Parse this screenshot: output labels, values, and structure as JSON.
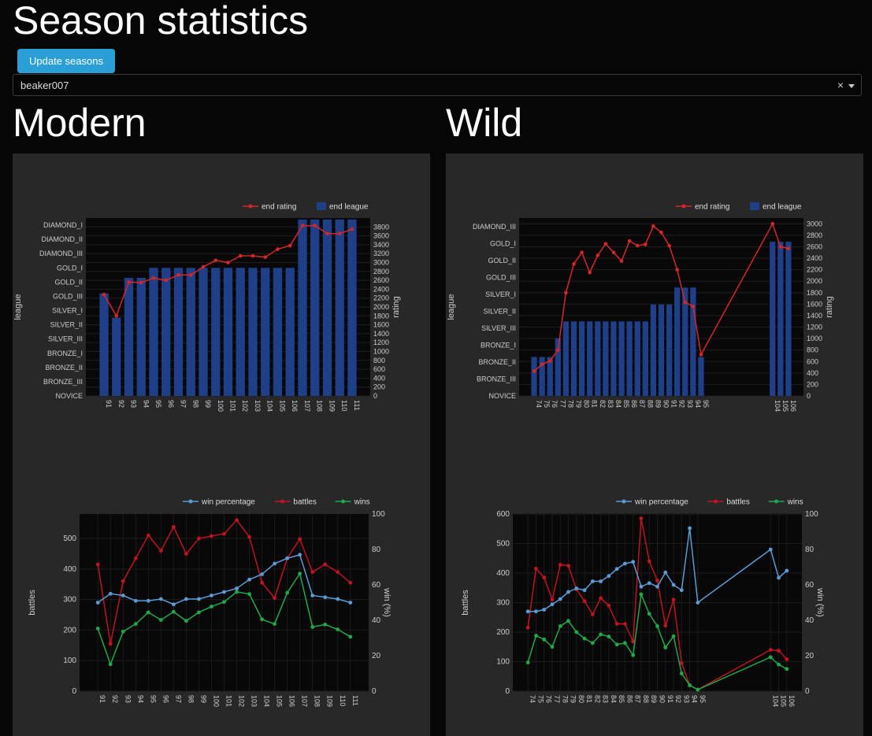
{
  "page": {
    "title": "Season statistics",
    "update_button": "Update seasons",
    "selected_player": "beaker007",
    "clear_symbol": "×"
  },
  "sections": {
    "modern": "Modern",
    "wild": "Wild"
  },
  "colors": {
    "end_rating": "#d62728",
    "end_league": "#1f3f88",
    "win_percentage": "#5b9bd5",
    "battles": "#c0141e",
    "wins": "#1faa4a",
    "panel_bg": "#282828",
    "plot_bg": "#080808"
  },
  "chart_data": [
    {
      "id": "modern-rating",
      "type": "bar+line",
      "legend": [
        "end rating",
        "end league"
      ],
      "legend_position": "top-right",
      "ylabel": "league",
      "y2label": "rating",
      "league_levels": [
        "NOVICE",
        "BRONZE_III",
        "BRONZE_II",
        "BRONZE_I",
        "SILVER_III",
        "SILVER_II",
        "SILVER_I",
        "GOLD_III",
        "GOLD_II",
        "GOLD_I",
        "DIAMOND_III",
        "DIAMOND_II",
        "DIAMOND_I"
      ],
      "y2lim": [
        0,
        4000
      ],
      "y2ticks": [
        0,
        200,
        400,
        600,
        800,
        1000,
        1200,
        1400,
        1600,
        1800,
        2000,
        2200,
        2400,
        2600,
        2800,
        3000,
        3200,
        3400,
        3600,
        3800
      ],
      "categories": [
        "91",
        "92",
        "93",
        "94",
        "95",
        "96",
        "97",
        "98",
        "99",
        "100",
        "101",
        "102",
        "103",
        "104",
        "105",
        "106",
        "107",
        "108",
        "109",
        "110",
        "111"
      ],
      "end_league": [
        7.2,
        5.5,
        8.3,
        8.3,
        9,
        9,
        9,
        9,
        9,
        9,
        9,
        9,
        9,
        9,
        9,
        9,
        12.4,
        12.4,
        12.4,
        12.4,
        12.4
      ],
      "end_rating": [
        2280,
        1800,
        2560,
        2550,
        2650,
        2600,
        2720,
        2720,
        2900,
        3050,
        3000,
        3150,
        3150,
        3120,
        3300,
        3380,
        3830,
        3830,
        3650,
        3650,
        3750
      ]
    },
    {
      "id": "wild-rating",
      "type": "bar+line",
      "legend": [
        "end rating",
        "end league"
      ],
      "legend_position": "top-right",
      "ylabel": "league",
      "y2label": "rating",
      "league_levels": [
        "NOVICE",
        "BRONZE_III",
        "BRONZE_II",
        "BRONZE_I",
        "SILVER_III",
        "SILVER_II",
        "SILVER_I",
        "GOLD_III",
        "GOLD_II",
        "GOLD_I",
        "DIAMOND_III"
      ],
      "y2lim": [
        0,
        3100
      ],
      "y2ticks": [
        0,
        200,
        400,
        600,
        800,
        1000,
        1200,
        1400,
        1600,
        1800,
        2000,
        2200,
        2400,
        2600,
        2800,
        3000
      ],
      "categories": [
        "74",
        "75",
        "76",
        "77",
        "78",
        "79",
        "80",
        "81",
        "82",
        "83",
        "84",
        "85",
        "86",
        "87",
        "88",
        "89",
        "90",
        "91",
        "92",
        "93",
        "94",
        "95",
        "104",
        "105",
        "106"
      ],
      "end_league": [
        2.3,
        2.3,
        2.3,
        3.4,
        4.4,
        4.4,
        4.4,
        4.4,
        4.4,
        4.4,
        4.4,
        4.4,
        4.4,
        4.4,
        4.4,
        5.4,
        5.4,
        5.4,
        6.4,
        6.4,
        6.4,
        2.3,
        9.1,
        9.1,
        9.1
      ],
      "end_rating": [
        430,
        550,
        610,
        800,
        1800,
        2300,
        2500,
        2150,
        2450,
        2650,
        2500,
        2350,
        2700,
        2620,
        2640,
        2960,
        2850,
        2620,
        2200,
        1630,
        1560,
        720,
        3000,
        2600,
        2570
      ]
    },
    {
      "id": "modern-battles",
      "type": "line",
      "legend": [
        "win percentage",
        "battles",
        "wins"
      ],
      "legend_position": "top-right",
      "ylabel": "battles",
      "y2label": "win (%)",
      "ylim": [
        0,
        580
      ],
      "yticks": [
        0,
        100,
        200,
        300,
        400,
        500
      ],
      "y2lim": [
        0,
        100
      ],
      "y2ticks": [
        0,
        20,
        40,
        60,
        80,
        100
      ],
      "categories": [
        "91",
        "92",
        "93",
        "94",
        "95",
        "96",
        "97",
        "98",
        "99",
        "100",
        "101",
        "102",
        "103",
        "104",
        "105",
        "106",
        "107",
        "108",
        "109",
        "110",
        "111"
      ],
      "win_percentage": [
        50,
        55,
        54,
        51,
        51,
        52,
        49,
        52,
        52,
        54,
        56,
        58,
        63,
        66,
        72,
        75,
        77,
        54,
        53,
        52,
        50
      ],
      "battles": [
        415,
        155,
        360,
        435,
        510,
        460,
        538,
        450,
        500,
        508,
        515,
        560,
        505,
        355,
        305,
        435,
        498,
        390,
        415,
        390,
        355
      ],
      "wins": [
        205,
        88,
        195,
        220,
        258,
        233,
        260,
        230,
        258,
        277,
        292,
        325,
        318,
        235,
        220,
        322,
        385,
        210,
        218,
        202,
        178
      ]
    },
    {
      "id": "wild-battles",
      "type": "line",
      "legend": [
        "win percentage",
        "battles",
        "wins"
      ],
      "legend_position": "top-right",
      "ylabel": "battles",
      "y2label": "win (%)",
      "ylim": [
        0,
        600
      ],
      "yticks": [
        0,
        100,
        200,
        300,
        400,
        500,
        600
      ],
      "y2lim": [
        0,
        100
      ],
      "y2ticks": [
        0,
        20,
        40,
        60,
        80,
        100
      ],
      "categories": [
        "74",
        "75",
        "76",
        "77",
        "78",
        "79",
        "80",
        "81",
        "82",
        "83",
        "84",
        "85",
        "86",
        "87",
        "88",
        "89",
        "90",
        "91",
        "92",
        "93",
        "94",
        "95",
        "104",
        "105",
        "106"
      ],
      "win_percentage": [
        45,
        45,
        46,
        49,
        52,
        56,
        58,
        57,
        62,
        62,
        65,
        69,
        72,
        73,
        59,
        61,
        59,
        67,
        60,
        57,
        92,
        50,
        80,
        64,
        68
      ],
      "battles": [
        215,
        415,
        385,
        310,
        428,
        425,
        345,
        305,
        260,
        315,
        290,
        228,
        228,
        168,
        585,
        440,
        375,
        222,
        310,
        95,
        20,
        5,
        140,
        137,
        108
      ],
      "wins": [
        97,
        188,
        175,
        150,
        220,
        238,
        200,
        178,
        163,
        192,
        185,
        158,
        163,
        122,
        328,
        262,
        220,
        148,
        186,
        60,
        20,
        5,
        115,
        90,
        75
      ]
    }
  ]
}
